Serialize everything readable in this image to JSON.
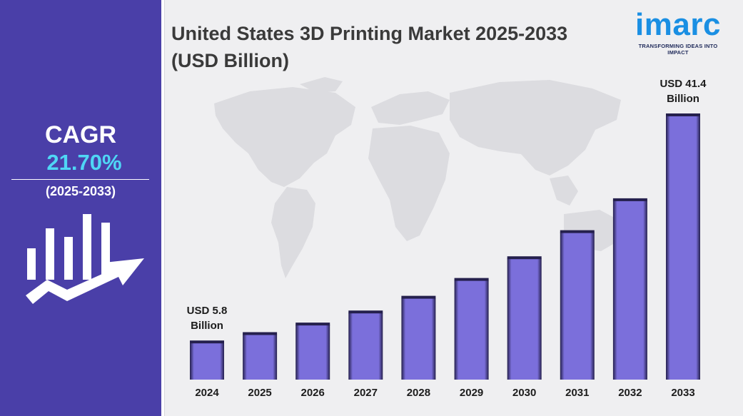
{
  "title": {
    "line1": "United States 3D Printing Market 2025-2033",
    "line2": "(USD Billion)"
  },
  "brand": {
    "name": "imarc",
    "tagline": "TRANSFORMING IDEAS INTO IMPACT",
    "color": "#1a8fe3"
  },
  "cagr": {
    "label": "CAGR",
    "value": "21.70%",
    "period": "(2025-2033)",
    "value_color": "#4fd6f5",
    "icon": "bar-chart-trend-arrow-icon"
  },
  "colors": {
    "panel": "#4a3fa8",
    "background": "#efeff1",
    "bar": "#7b6fdb",
    "bar_edge": "#25204d",
    "map": "#dcdce0"
  },
  "chart_data": {
    "type": "bar",
    "title": "United States 3D Printing Market 2025-2033 (USD Billion)",
    "categories": [
      "2024",
      "2025",
      "2026",
      "2027",
      "2028",
      "2029",
      "2030",
      "2031",
      "2032",
      "2033"
    ],
    "values": [
      5.8,
      7.1,
      8.6,
      10.5,
      12.8,
      15.6,
      19.0,
      23.1,
      28.1,
      41.4
    ],
    "ylim": [
      0,
      41.4
    ],
    "grid": false,
    "legend": "none",
    "annotations": [
      {
        "category": "2024",
        "line1": "USD 5.8",
        "line2": "Billion"
      },
      {
        "category": "2033",
        "line1": "USD 41.4",
        "line2": "Billion"
      }
    ]
  }
}
